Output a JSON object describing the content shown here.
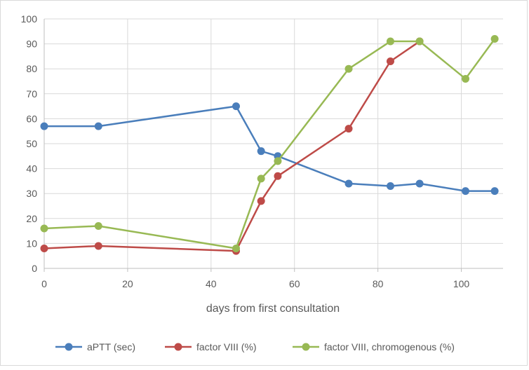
{
  "chart_data": {
    "type": "line",
    "title": "",
    "xlabel": "days from first consultation",
    "ylabel": "",
    "xlim": [
      0,
      110
    ],
    "ylim": [
      0,
      100
    ],
    "x_ticks": [
      0,
      20,
      40,
      60,
      80,
      100
    ],
    "y_ticks": [
      0,
      10,
      20,
      30,
      40,
      50,
      60,
      70,
      80,
      90,
      100
    ],
    "grid": true,
    "legend_position": "bottom",
    "series": [
      {
        "name": "aPTT (sec)",
        "color": "#4a7ebb",
        "points": [
          [
            0,
            57
          ],
          [
            13,
            57
          ],
          [
            46,
            65
          ],
          [
            52,
            47
          ],
          [
            56,
            45
          ],
          [
            73,
            34
          ],
          [
            83,
            33
          ],
          [
            90,
            34
          ],
          [
            101,
            31
          ],
          [
            108,
            31
          ]
        ]
      },
      {
        "name": "factor VIII (%)",
        "color": "#be4b48",
        "points": [
          [
            0,
            8
          ],
          [
            13,
            9
          ],
          [
            46,
            7
          ],
          [
            52,
            27
          ],
          [
            56,
            37
          ],
          [
            73,
            56
          ],
          [
            83,
            83
          ],
          [
            90,
            91
          ]
        ]
      },
      {
        "name": "factor VIII, chromogenous (%)",
        "color": "#98b954",
        "points": [
          [
            0,
            16
          ],
          [
            13,
            17
          ],
          [
            46,
            8
          ],
          [
            52,
            36
          ],
          [
            56,
            43
          ],
          [
            73,
            80
          ],
          [
            83,
            91
          ],
          [
            90,
            91
          ],
          [
            101,
            76
          ],
          [
            108,
            92
          ]
        ]
      }
    ]
  }
}
